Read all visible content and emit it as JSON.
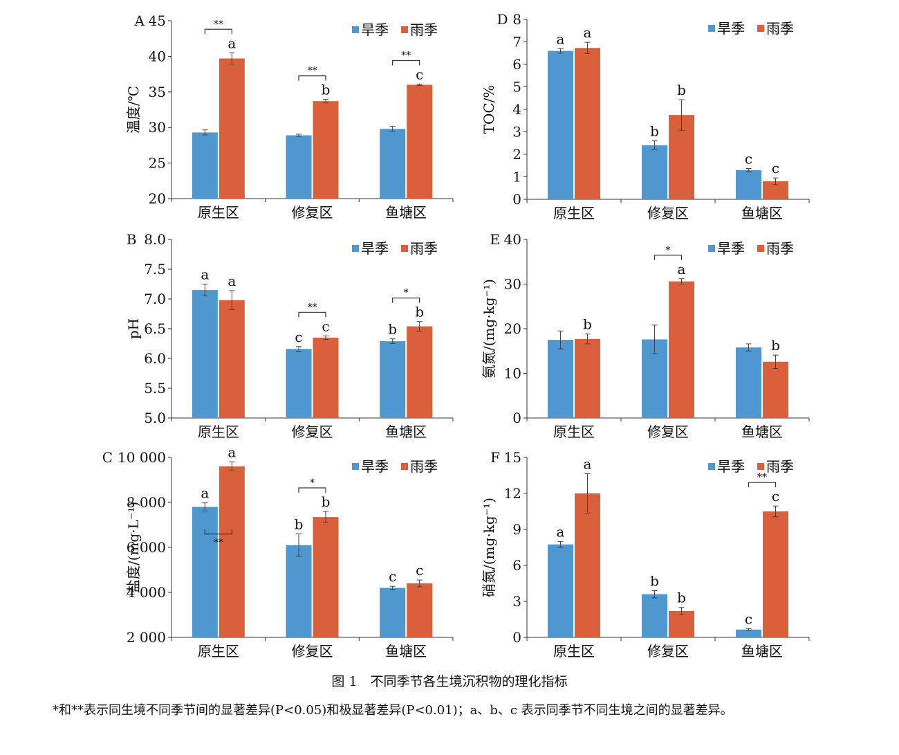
{
  "colors": {
    "dry": "#4f97cf",
    "rain": "#d9603b",
    "axis": "#333333",
    "text": "#111111"
  },
  "figure": {
    "caption": "图 1　不同季节各生境沉积物的理化指标",
    "note": "*和**表示同生境不同季节间的显著差异(P<0.05)和极显著差异(P<0.01)；a、b、c 表示同季节不同生境之间的显著差异。"
  },
  "chart_data": [
    {
      "id": "A",
      "panel_label": "A",
      "type": "bar",
      "categories": [
        "原生区",
        "修复区",
        "鱼塘区"
      ],
      "ylabel": "温度/℃",
      "ylim": [
        20,
        45
      ],
      "yticks": [
        20,
        25,
        30,
        35,
        40,
        45
      ],
      "ytick_labels": [
        "20",
        "25",
        "30",
        "35",
        "40",
        "45"
      ],
      "legend": [
        "旱季",
        "雨季"
      ],
      "legend_position": "top-right",
      "series": [
        {
          "name": "旱季",
          "values": [
            29.3,
            28.9,
            29.8
          ],
          "errors": [
            0.35,
            0.15,
            0.35
          ],
          "letters": [
            "",
            "",
            ""
          ]
        },
        {
          "name": "雨季",
          "values": [
            39.7,
            33.7,
            36.0
          ],
          "errors": [
            0.8,
            0.25,
            0.1
          ],
          "letters": [
            "a",
            "b",
            "c"
          ]
        }
      ],
      "significance": [
        {
          "category": 0,
          "label": "**"
        },
        {
          "category": 1,
          "label": "**"
        },
        {
          "category": 2,
          "label": "**"
        }
      ]
    },
    {
      "id": "B",
      "panel_label": "B",
      "type": "bar",
      "categories": [
        "原生区",
        "修复区",
        "鱼塘区"
      ],
      "ylabel": "pH",
      "ylim": [
        5.0,
        8.0
      ],
      "yticks": [
        5.0,
        5.5,
        6.0,
        6.5,
        7.0,
        7.5,
        8.0
      ],
      "ytick_labels": [
        "5.0",
        "5.5",
        "6.0",
        "6.5",
        "7.0",
        "7.5",
        "8.0"
      ],
      "legend": [
        "旱季",
        "雨季"
      ],
      "legend_position": "top-right",
      "series": [
        {
          "name": "旱季",
          "values": [
            7.15,
            6.16,
            6.29
          ],
          "errors": [
            0.1,
            0.04,
            0.04
          ],
          "letters": [
            "a",
            "c",
            "b"
          ]
        },
        {
          "name": "雨季",
          "values": [
            6.98,
            6.35,
            6.54
          ],
          "errors": [
            0.16,
            0.03,
            0.08
          ],
          "letters": [
            "a",
            "c",
            "b"
          ]
        }
      ],
      "significance": [
        {
          "category": 1,
          "label": "**"
        },
        {
          "category": 2,
          "label": "*"
        }
      ]
    },
    {
      "id": "C",
      "panel_label": "C",
      "type": "bar",
      "categories": [
        "原生区",
        "修复区",
        "鱼塘区"
      ],
      "ylabel": "盐度/(mg·L⁻¹)",
      "ylim": [
        2000,
        10000
      ],
      "yticks": [
        2000,
        4000,
        6000,
        8000,
        10000
      ],
      "ytick_labels": [
        "2 000",
        "4 000",
        "6 000",
        "8 000",
        "10 000"
      ],
      "legend": [
        "旱季",
        "雨季"
      ],
      "legend_position": "top-right",
      "series": [
        {
          "name": "旱季",
          "values": [
            7800,
            6100,
            4200
          ],
          "errors": [
            180,
            500,
            70
          ],
          "letters": [
            "a",
            "b",
            "c"
          ]
        },
        {
          "name": "雨季",
          "values": [
            9600,
            7350,
            4400
          ],
          "errors": [
            200,
            250,
            150
          ],
          "letters": [
            "a",
            "b",
            "c"
          ]
        }
      ],
      "significance": [
        {
          "category": 0,
          "label": "**",
          "below": true
        },
        {
          "category": 1,
          "label": "*"
        }
      ]
    },
    {
      "id": "D",
      "panel_label": "D",
      "type": "bar",
      "categories": [
        "原生区",
        "修复区",
        "鱼塘区"
      ],
      "ylabel": "TOC/%",
      "ylim": [
        0,
        8
      ],
      "yticks": [
        0,
        1,
        2,
        3,
        4,
        5,
        6,
        7,
        8
      ],
      "ytick_labels": [
        "0",
        "1",
        "2",
        "3",
        "4",
        "5",
        "6",
        "7",
        "8"
      ],
      "legend": [
        "旱季",
        "雨季"
      ],
      "legend_position": "top-right",
      "series": [
        {
          "name": "旱季",
          "values": [
            6.6,
            2.4,
            1.3
          ],
          "errors": [
            0.1,
            0.2,
            0.07
          ],
          "letters": [
            "a",
            "b",
            "c"
          ]
        },
        {
          "name": "雨季",
          "values": [
            6.73,
            3.75,
            0.8
          ],
          "errors": [
            0.25,
            0.68,
            0.15
          ],
          "letters": [
            "a",
            "b",
            "c"
          ]
        }
      ],
      "significance": []
    },
    {
      "id": "E",
      "panel_label": "E",
      "type": "bar",
      "categories": [
        "原生区",
        "修复区",
        "鱼塘区"
      ],
      "ylabel": "氨氮/(mg·kg⁻¹)",
      "ylim": [
        0,
        40
      ],
      "yticks": [
        0,
        10,
        20,
        30,
        40
      ],
      "ytick_labels": [
        "0",
        "10",
        "20",
        "30",
        "40"
      ],
      "legend": [
        "旱季",
        "雨季"
      ],
      "legend_position": "top-right",
      "series": [
        {
          "name": "旱季",
          "values": [
            17.5,
            17.6,
            15.8
          ],
          "errors": [
            2.0,
            3.2,
            0.8
          ],
          "letters": [
            "",
            "",
            ""
          ]
        },
        {
          "name": "雨季",
          "values": [
            17.7,
            30.6,
            12.6
          ],
          "errors": [
            1.1,
            0.6,
            1.5
          ],
          "letters": [
            "b",
            "a",
            "b"
          ]
        }
      ],
      "significance": [
        {
          "category": 1,
          "label": "*"
        }
      ]
    },
    {
      "id": "F",
      "panel_label": "F",
      "type": "bar",
      "categories": [
        "原生区",
        "修复区",
        "鱼塘区"
      ],
      "ylabel": "硝氮/(mg·kg⁻¹)",
      "ylim": [
        0,
        15
      ],
      "yticks": [
        0,
        3,
        6,
        9,
        12,
        15
      ],
      "ytick_labels": [
        "0",
        "3",
        "6",
        "9",
        "12",
        "15"
      ],
      "legend": [
        "旱季",
        "雨季"
      ],
      "legend_position": "top-right",
      "series": [
        {
          "name": "旱季",
          "values": [
            7.75,
            3.6,
            0.65
          ],
          "errors": [
            0.25,
            0.3,
            0.08
          ],
          "letters": [
            "a",
            "b",
            "c"
          ]
        },
        {
          "name": "雨季",
          "values": [
            12.0,
            2.2,
            10.5
          ],
          "errors": [
            1.65,
            0.3,
            0.45
          ],
          "letters": [
            "a",
            "b",
            "c"
          ]
        }
      ],
      "significance": [
        {
          "category": 2,
          "label": "**"
        }
      ]
    }
  ]
}
